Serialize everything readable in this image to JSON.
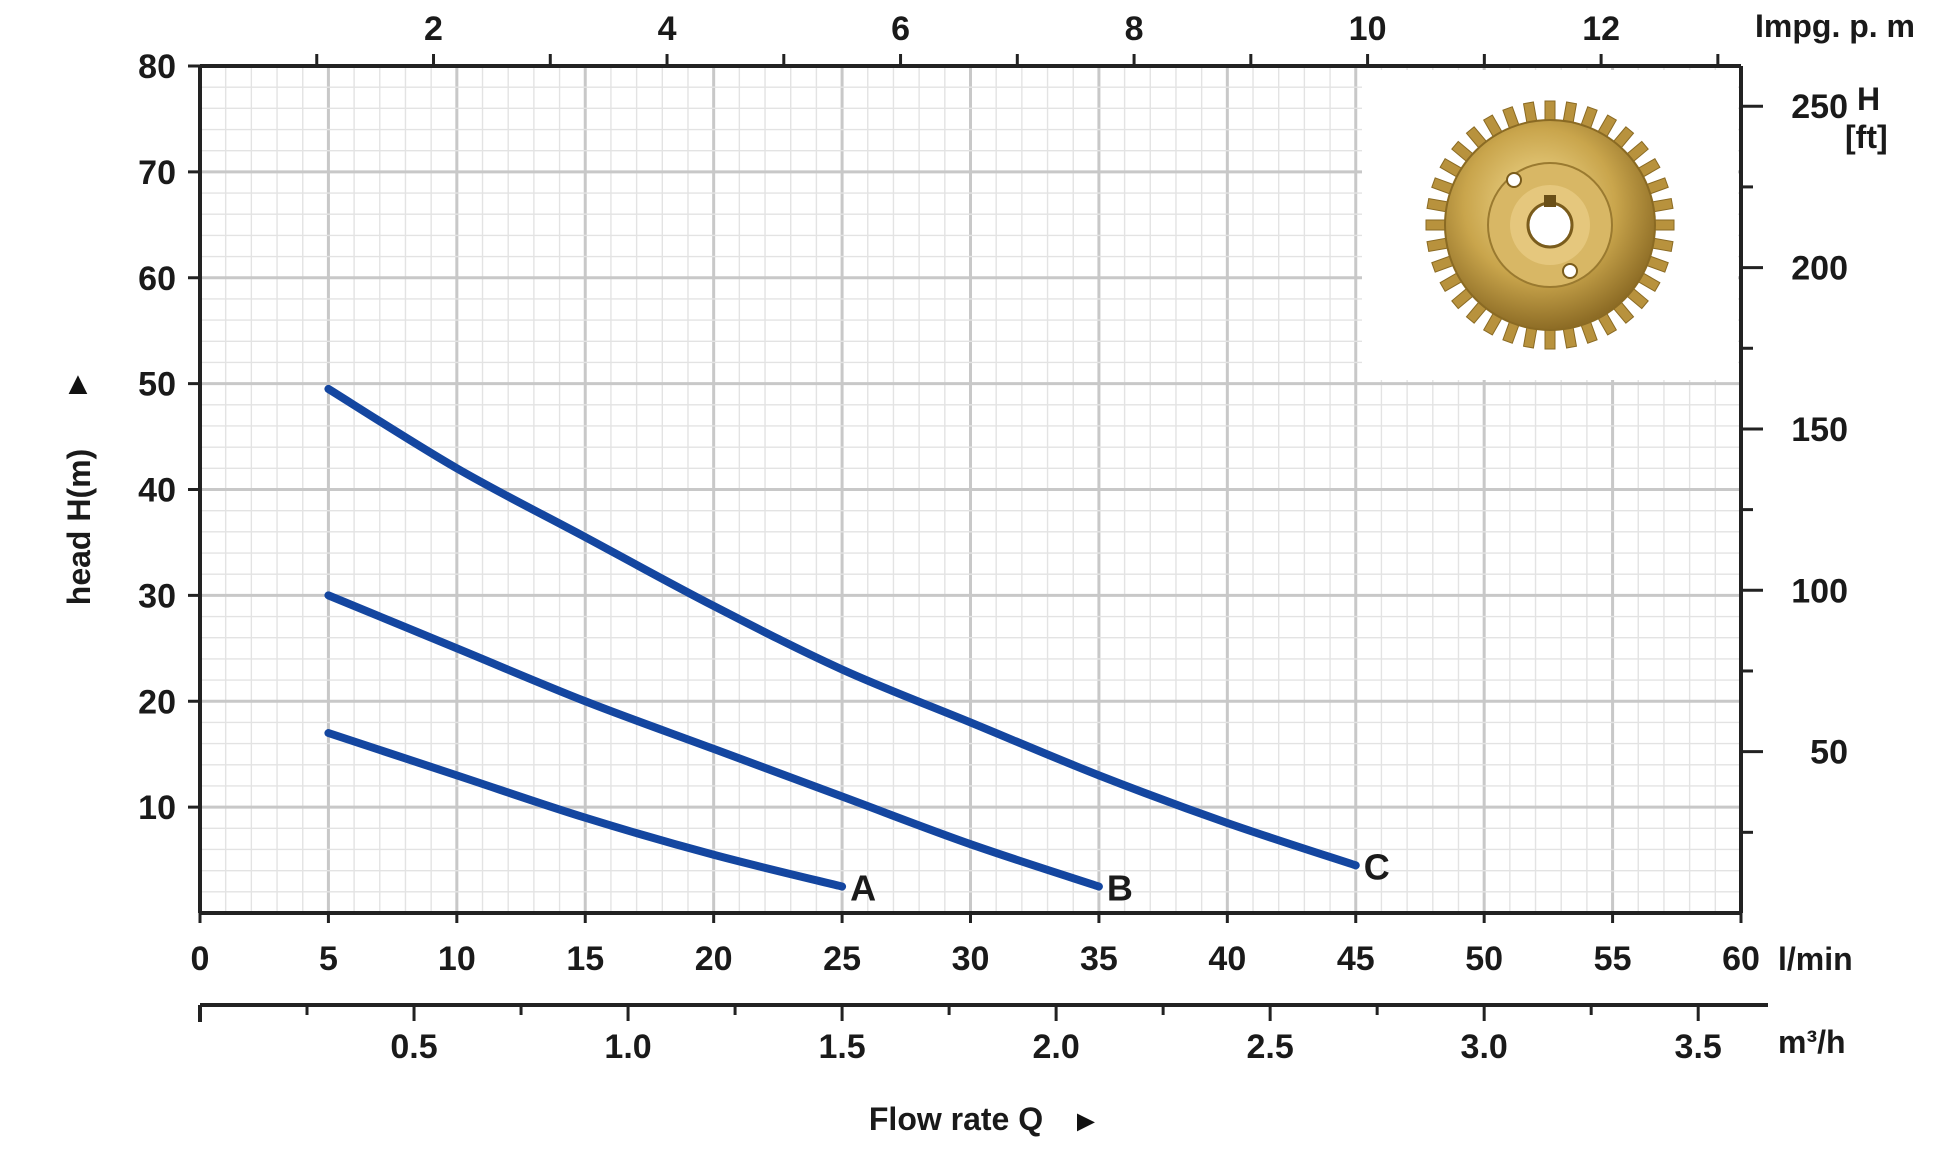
{
  "chart_data": {
    "type": "line",
    "title": "",
    "xlabel": "Flow rate Q",
    "ylabel": "head H(m)",
    "grid": true,
    "xlim": [
      0,
      60
    ],
    "ylim": [
      0,
      80
    ],
    "x_ticks": [
      "0",
      "5",
      "10",
      "15",
      "20",
      "25",
      "30",
      "35",
      "40",
      "45",
      "50",
      "55",
      "60"
    ],
    "x_unit": "l/min",
    "y_ticks": [
      "10",
      "20",
      "30",
      "40",
      "50",
      "60",
      "70",
      "80"
    ],
    "secondary_axes": {
      "top": {
        "unit": "Impg. p. m",
        "ticks": [
          {
            "label": "2",
            "value": 2
          },
          {
            "label": "4",
            "value": 4
          },
          {
            "label": "6",
            "value": 6
          },
          {
            "label": "8",
            "value": 8
          },
          {
            "label": "10",
            "value": 10
          },
          {
            "label": "12",
            "value": 12
          }
        ]
      },
      "right": {
        "unit_line1": "H",
        "unit_line2": "[ft]",
        "ticks": [
          {
            "label": "50",
            "value": 50
          },
          {
            "label": "100",
            "value": 100
          },
          {
            "label": "150",
            "value": 150
          },
          {
            "label": "200",
            "value": 200
          },
          {
            "label": "250",
            "value": 250
          }
        ]
      },
      "bottom2": {
        "unit": "m³/h",
        "ticks": [
          {
            "label": "0.5",
            "value": 0.5
          },
          {
            "label": "1.0",
            "value": 1.0
          },
          {
            "label": "1.5",
            "value": 1.5
          },
          {
            "label": "2.0",
            "value": 2.0
          },
          {
            "label": "2.5",
            "value": 2.5
          },
          {
            "label": "3.0",
            "value": 3.0
          },
          {
            "label": "3.5",
            "value": 3.5
          }
        ]
      }
    },
    "series": [
      {
        "name": "A",
        "color": "#1446a0",
        "x": [
          5,
          10,
          15,
          20,
          25
        ],
        "y": [
          17,
          13,
          9,
          5.5,
          2.5
        ]
      },
      {
        "name": "B",
        "color": "#1446a0",
        "x": [
          5,
          10,
          15,
          20,
          25,
          30,
          35
        ],
        "y": [
          30,
          25,
          20,
          15.5,
          11,
          6.5,
          2.5
        ]
      },
      {
        "name": "C",
        "color": "#1446a0",
        "x": [
          5,
          10,
          15,
          20,
          25,
          30,
          35,
          40,
          45
        ],
        "y": [
          49.5,
          42,
          35.5,
          29,
          23,
          18,
          13,
          8.5,
          4.5
        ]
      }
    ]
  },
  "inset_image": {
    "icon": "brass-impeller-icon",
    "color": "#c9a54c"
  },
  "arrows": {
    "y": "▲",
    "x": "►"
  }
}
